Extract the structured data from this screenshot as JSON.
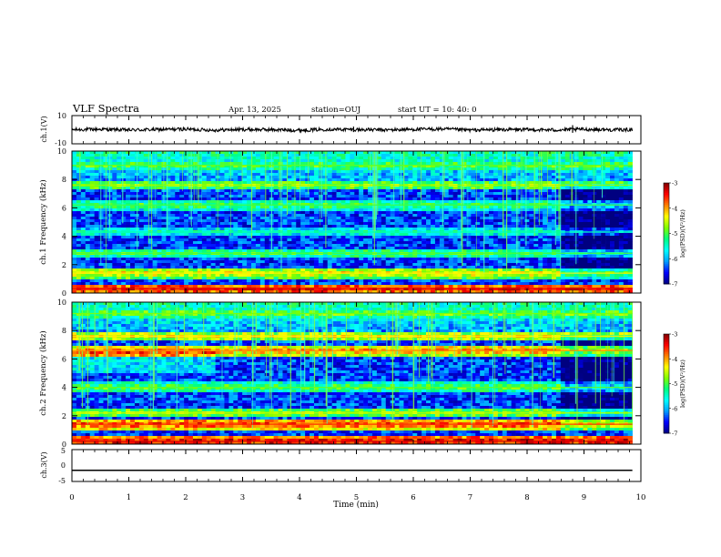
{
  "header": {
    "title": "VLF Spectra",
    "date": "Apr. 13, 2025",
    "station": "station=OUJ",
    "start_ut": "start  UT =   10: 40: 0"
  },
  "chart_data": [
    {
      "type": "line",
      "name": "ch1-waveform",
      "ylabel": "ch.1(V)",
      "ylim": [
        -10,
        10
      ],
      "yticks": [
        "10",
        "-10"
      ],
      "x": [
        0,
        0.5,
        1,
        1.5,
        2,
        2.5,
        3,
        3.5,
        4,
        4.5,
        5,
        5.5,
        6,
        6.5,
        7,
        7.5,
        8,
        8.5,
        9,
        9.5,
        9.85
      ],
      "y": [
        0,
        0.3,
        -0.2,
        0.1,
        0.4,
        -0.3,
        0.2,
        0,
        -0.4,
        0.3,
        0.1,
        -0.2,
        0.2,
        0.5,
        -0.3,
        0.1,
        0,
        -0.2,
        0.3,
        -0.1,
        0
      ],
      "amplitude_band": 1.2
    },
    {
      "type": "heatmap",
      "name": "ch1-spectrogram",
      "ylabel": "ch.1\nFrequency (kHz)",
      "ylim": [
        0,
        10
      ],
      "yticks": [
        "0",
        "2",
        "4",
        "6",
        "8",
        "10"
      ],
      "data_xlim": [
        0,
        9.85
      ],
      "colorbar": {
        "label": "log(PSD)(V²/Hz)",
        "range": [
          -7,
          -3
        ],
        "ticks": [
          "-3",
          "-4",
          "-5",
          "-6",
          "-7"
        ]
      },
      "bands": [
        {
          "f": 0.3,
          "level": -3.4
        },
        {
          "f": 1.4,
          "level": -4.3
        },
        {
          "f": 2.8,
          "level": -5.0
        },
        {
          "f": 4.3,
          "level": -5.4
        },
        {
          "f": 6.2,
          "level": -5.0
        },
        {
          "f": 7.6,
          "level": -4.7
        },
        {
          "f": 9.0,
          "level": -4.9
        }
      ]
    },
    {
      "type": "heatmap",
      "name": "ch2-spectrogram",
      "ylabel": "ch.2\nFrequency (kHz)",
      "ylim": [
        0,
        10
      ],
      "yticks": [
        "0",
        "2",
        "4",
        "6",
        "8",
        "10"
      ],
      "data_xlim": [
        0,
        9.85
      ],
      "colorbar": {
        "label": "log(PSD)(V²/Hz)",
        "range": [
          -7,
          -3
        ],
        "ticks": [
          "-3",
          "-4",
          "-5",
          "-6",
          "-7"
        ]
      },
      "bands": [
        {
          "f": 0.2,
          "level": -3.3
        },
        {
          "f": 1.4,
          "level": -3.6
        },
        {
          "f": 2.2,
          "level": -4.6
        },
        {
          "f": 4.0,
          "level": -4.9
        },
        {
          "f": 6.6,
          "level": -3.9
        },
        {
          "f": 7.6,
          "level": -4.3
        },
        {
          "f": 9.2,
          "level": -4.8
        }
      ]
    },
    {
      "type": "line",
      "name": "ch3-waveform",
      "ylabel": "ch.3(V)",
      "ylim": [
        -5,
        5
      ],
      "yticks": [
        "5",
        "0",
        "-5"
      ],
      "x": [
        0,
        9.85
      ],
      "y": [
        -1.5,
        -1.5
      ]
    }
  ],
  "xaxis": {
    "label": "Time (min)",
    "ticks": [
      "0",
      "1",
      "2",
      "3",
      "4",
      "5",
      "6",
      "7",
      "8",
      "9",
      "10"
    ],
    "xlim": [
      0,
      10
    ]
  },
  "colors": {
    "colormap": [
      "#000080",
      "#0000ff",
      "#00a0ff",
      "#00ffff",
      "#00ff80",
      "#80ff00",
      "#ffff00",
      "#ff8000",
      "#ff0000",
      "#800000"
    ]
  }
}
